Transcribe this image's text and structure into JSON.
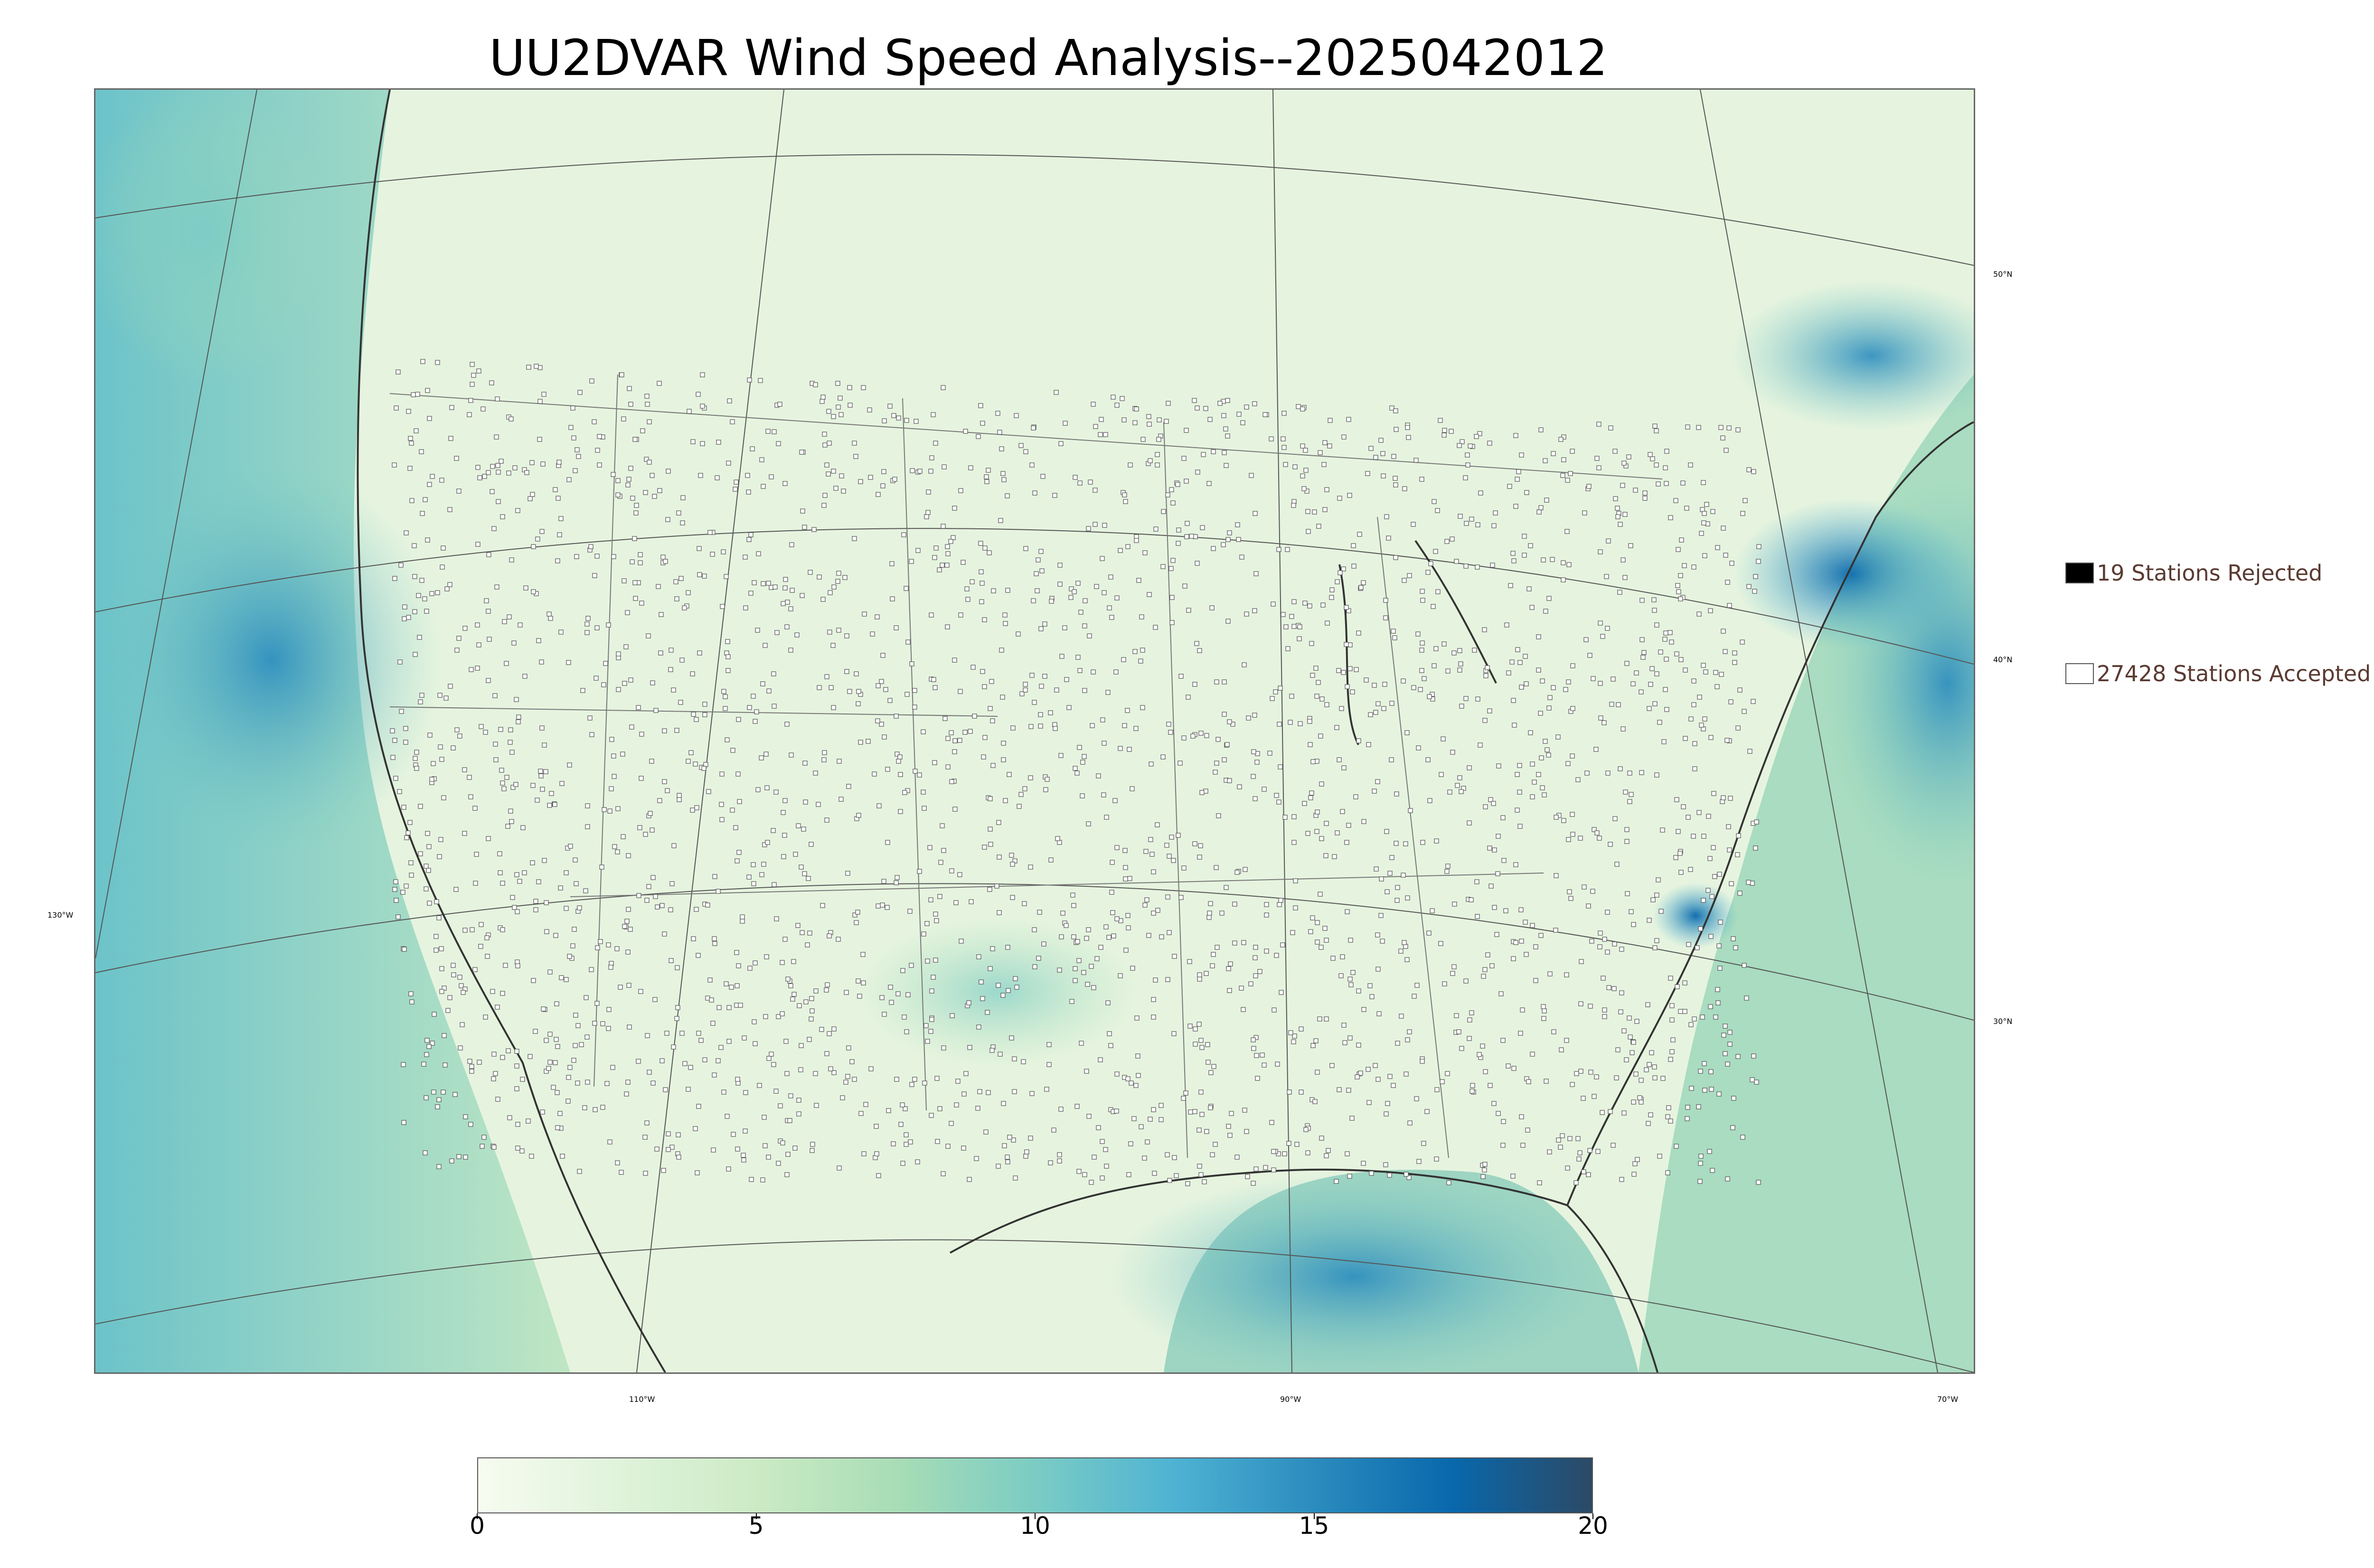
{
  "title": "UU2DVAR Wind Speed Analysis--2025042012",
  "map": {
    "latitude_labels": [
      "50°N",
      "40°N",
      "30°N"
    ],
    "longitude_labels": [
      "130°W",
      "110°W",
      "90°W",
      "70°W"
    ]
  },
  "legend": {
    "rejected_label": "19 Stations Rejected",
    "accepted_label": "27428 Stations Accepted",
    "rejected_color": "#000000",
    "accepted_color": "#ffffff"
  },
  "colorbar": {
    "min": 0,
    "max": 20,
    "ticks": [
      "0",
      "5",
      "10",
      "15",
      "20"
    ],
    "colors": [
      "#f7fcf0",
      "#e0f3db",
      "#ccebc5",
      "#a8ddb5",
      "#7bccc4",
      "#4eb3d3",
      "#2b8cbe",
      "#0868ac",
      "#2c4a66"
    ]
  }
}
